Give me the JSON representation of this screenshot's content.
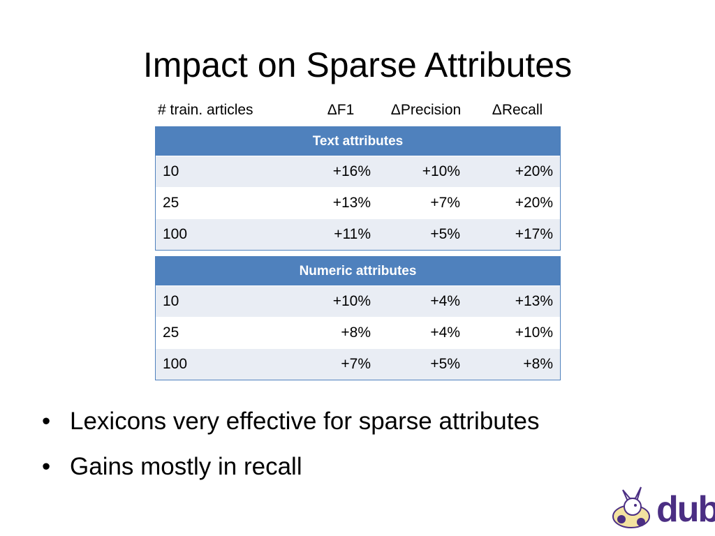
{
  "slide": {
    "title": "Impact on Sparse Attributes",
    "column_headers": [
      "# train. articles",
      "ΔF1",
      "ΔPrecision",
      "ΔRecall"
    ],
    "tables": [
      {
        "section": "Text attributes",
        "rows": [
          [
            "10",
            "+16%",
            "+10%",
            "+20%"
          ],
          [
            "25",
            "+13%",
            "+7%",
            "+20%"
          ],
          [
            "100",
            "+11%",
            "+5%",
            "+17%"
          ]
        ]
      },
      {
        "section": "Numeric attributes",
        "rows": [
          [
            "10",
            "+10%",
            "+4%",
            "+13%"
          ],
          [
            "25",
            "+8%",
            "+4%",
            "+10%"
          ],
          [
            "100",
            "+7%",
            "+5%",
            "+8%"
          ]
        ]
      }
    ],
    "bullets": [
      "Lexicons very effective for sparse attributes",
      "Gains mostly in recall"
    ],
    "logo": "dub"
  }
}
